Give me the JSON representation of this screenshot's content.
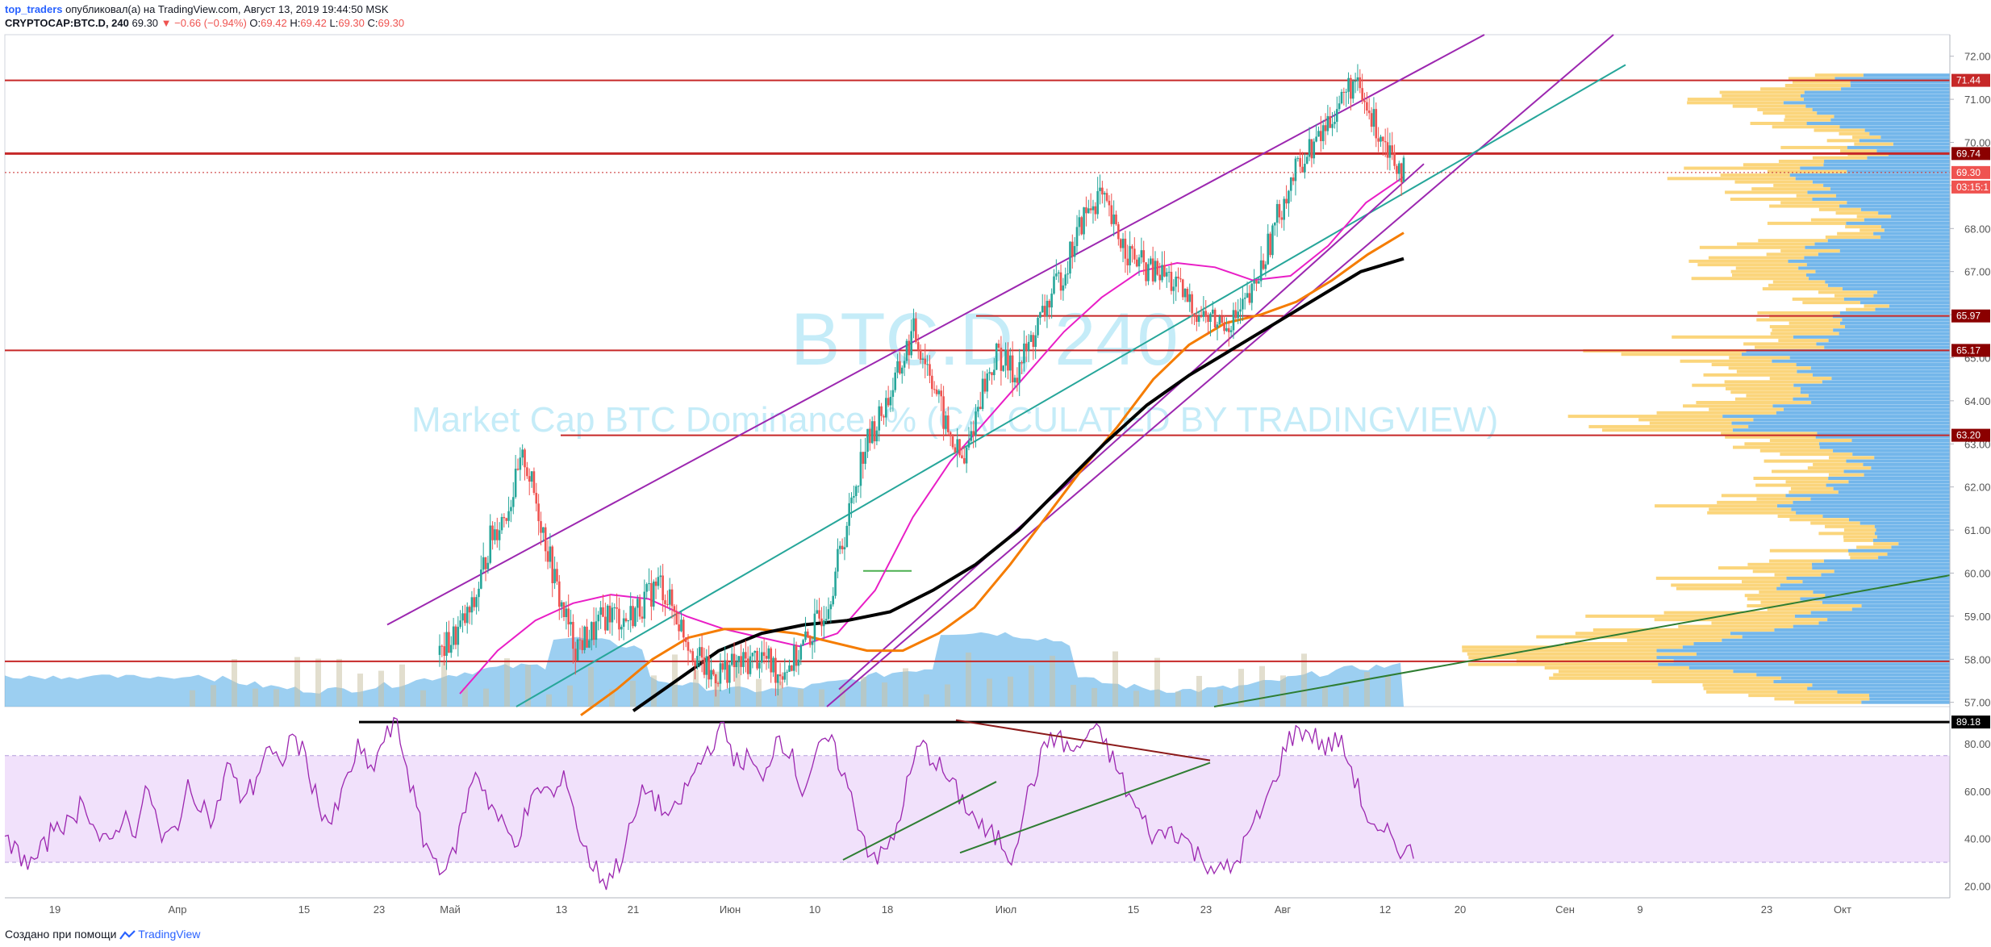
{
  "header": {
    "author": "top_traders",
    "published_text": " опубликовал(а) на TradingView.com, Август 13, 2019 19:44:50 MSK",
    "symbol": "CRYPTOCAP:BTC.D, 240",
    "last": "69.30",
    "change": "−0.66 (−0.94%)",
    "o_label": "O:",
    "o": "69.42",
    "h_label": "H:",
    "h": "69.42",
    "l_label": "L:",
    "l": "69.30",
    "c_label": "C:",
    "c": "69.30"
  },
  "watermark": {
    "symbol": "BTC.D, 240",
    "description": "Market Cap BTC Dominance, % (CALCULATED BY TRADINGVIEW)"
  },
  "footer": {
    "text": "Создано при помощи ",
    "brand": "TradingView"
  },
  "colors": {
    "up": "#26a69a",
    "down": "#ef5350",
    "hline": "#c62828",
    "trend_purple": "#9c27b0",
    "trend_teal": "#26a69a",
    "ma_magenta": "#e91ec6",
    "ma_orange": "#f57c00",
    "ma_black": "#000000",
    "rsi": "#9c27b0",
    "rsi_band": "#f1e1fb",
    "volume_profile_up": "#5aa9e6",
    "volume_profile_down": "#f9c74f"
  },
  "chart_data": [
    {
      "type": "candlestick",
      "title": "Market Cap BTC Dominance, % (CALCULATED BY TRADINGVIEW)",
      "symbol": "CRYPTOCAP:BTC.D",
      "timeframe": "240",
      "price_axis": {
        "ticks": [
          "72.00",
          "71.00",
          "70.00",
          "69.00",
          "68.00",
          "67.00",
          "66.00",
          "65.00",
          "64.00",
          "63.00",
          "62.00",
          "61.00",
          "60.00",
          "59.00",
          "58.00",
          "57.00"
        ],
        "ylim": [
          56.9,
          72.5
        ]
      },
      "time_axis": {
        "ticks": [
          "19",
          "Апр",
          "15",
          "23",
          "Май",
          "13",
          "21",
          "Июн",
          "10",
          "18",
          "Июл",
          "15",
          "23",
          "Авг",
          "12",
          "20",
          "Сен",
          "9",
          "23",
          "Окт"
        ]
      },
      "horizontal_levels": [
        71.44,
        69.74,
        65.97,
        65.17,
        63.2,
        57.95
      ],
      "level_tags": [
        "71.44",
        "69.74",
        "69.30",
        "03:15:1",
        "65.97",
        "65.17",
        "63.20"
      ],
      "last_price": 69.3,
      "close_series": [
        58.1,
        58.6,
        59.2,
        60.8,
        61.5,
        62.7,
        61.2,
        59.5,
        58.3,
        58.6,
        59.1,
        58.9,
        59.3,
        59.8,
        59.0,
        58.2,
        57.6,
        57.8,
        57.9,
        58.1,
        57.7,
        58.0,
        58.6,
        59.4,
        61.0,
        62.8,
        63.6,
        64.5,
        65.6,
        64.7,
        63.3,
        62.5,
        64.2,
        65.1,
        64.6,
        65.4,
        66.3,
        67.1,
        68.2,
        68.8,
        67.9,
        67.3,
        67.0,
        66.9,
        66.4,
        66.0,
        65.8,
        65.9,
        66.4,
        67.6,
        68.8,
        69.6,
        70.1,
        70.8,
        71.4,
        70.6,
        70.0,
        69.3
      ],
      "moving_averages": [
        {
          "name": "MA magenta",
          "values": [
            57.2,
            58.2,
            58.9,
            59.3,
            59.5,
            59.4,
            59.0,
            58.7,
            58.5,
            58.3,
            58.6,
            59.6,
            61.3,
            62.6,
            63.6,
            64.6,
            65.6,
            66.4,
            67.0,
            67.2,
            67.1,
            66.8,
            66.9,
            67.6,
            68.6,
            69.2
          ]
        },
        {
          "name": "MA orange",
          "values": [
            56.7,
            57.3,
            58.0,
            58.5,
            58.7,
            58.7,
            58.6,
            58.4,
            58.2,
            58.2,
            58.6,
            59.2,
            60.2,
            61.3,
            62.4,
            63.4,
            64.5,
            65.3,
            65.8,
            66.0,
            66.3,
            66.8,
            67.4,
            67.9
          ]
        },
        {
          "name": "MA black",
          "values": [
            56.8,
            57.5,
            58.2,
            58.6,
            58.8,
            58.9,
            59.1,
            59.6,
            60.2,
            61.0,
            62.0,
            63.0,
            63.9,
            64.6,
            65.2,
            65.8,
            66.4,
            67.0,
            67.3
          ]
        }
      ]
    },
    {
      "type": "line",
      "title": "RSI",
      "ylim": [
        15,
        95
      ],
      "price_axis": {
        "ticks": [
          "80.00",
          "60.00",
          "40.00",
          "20.00"
        ]
      },
      "levels": [
        89.18
      ],
      "level_tags": [
        "89.18"
      ],
      "overbought": 75,
      "oversold": 30,
      "series": [
        {
          "values": [
            38,
            34,
            29,
            36,
            48,
            45,
            58,
            42,
            36,
            50,
            44,
            62,
            38,
            44,
            60,
            56,
            46,
            72,
            58,
            62,
            78,
            70,
            84,
            74,
            54,
            46,
            62,
            78,
            68,
            82,
            88,
            64,
            40,
            30,
            28,
            48,
            70,
            56,
            46,
            38,
            52,
            62,
            58,
            66,
            40,
            28,
            22,
            30,
            46,
            62,
            54,
            48,
            60,
            70,
            80,
            86,
            72,
            74,
            62,
            84,
            78,
            60,
            74,
            82,
            70,
            52,
            36,
            32,
            40,
            62,
            80,
            74,
            66,
            58,
            50,
            42,
            40,
            32,
            54,
            70,
            84,
            80,
            76,
            86,
            82,
            70,
            58,
            48,
            40,
            44,
            42,
            34,
            30,
            26,
            28,
            40,
            50,
            62,
            80,
            86,
            84,
            78,
            82,
            70,
            52,
            40,
            42,
            34
          ]
        }
      ]
    }
  ]
}
